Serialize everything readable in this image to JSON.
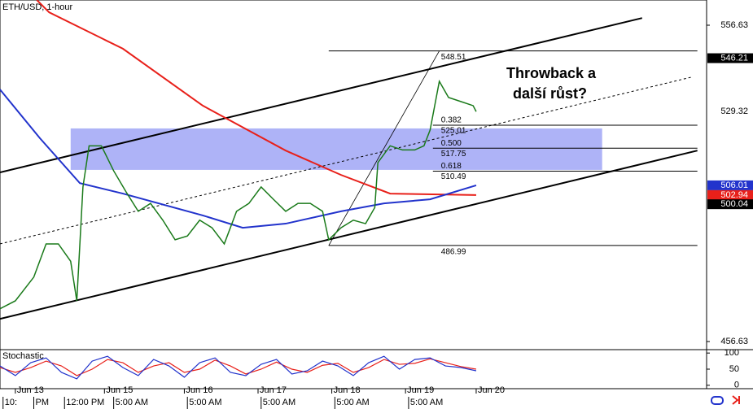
{
  "chart_data": {
    "type": "line",
    "title": "ETH/USD, 1-hour",
    "xlim": [
      0,
      230
    ],
    "ylim": [
      454.07,
      564.6
    ],
    "yticks": [
      456.63,
      556.63
    ],
    "xticks": [
      {
        "value": 5,
        "label": "Jun 13"
      },
      {
        "value": 34,
        "label": "Jun 15"
      },
      {
        "value": 60,
        "label": "Jun 16"
      },
      {
        "value": 84,
        "label": "Jun 17"
      },
      {
        "value": 108,
        "label": "Jun 18"
      },
      {
        "value": 132,
        "label": "Jun 19"
      },
      {
        "value": 155,
        "label": "Jun 20"
      }
    ],
    "xticks_minor": [
      {
        "value": 1,
        "label": "10:"
      },
      {
        "value": 11,
        "label": "PM"
      },
      {
        "value": 21,
        "label": "12:00 PM"
      },
      {
        "value": 37,
        "label": "5:00 AM"
      },
      {
        "value": 61,
        "label": "5:00 AM"
      },
      {
        "value": 85,
        "label": "5:00 AM"
      },
      {
        "value": 109,
        "label": "5:00 AM"
      },
      {
        "value": 133,
        "label": "5:00 AM"
      }
    ],
    "price": {
      "color": "#1a7a1a",
      "x": [
        0,
        5,
        11,
        15,
        19,
        23,
        25,
        27,
        29,
        33,
        37,
        41,
        45,
        49,
        53,
        57,
        61,
        65,
        69,
        73,
        77,
        81,
        85,
        89,
        93,
        97,
        101,
        105,
        107,
        111,
        115,
        119,
        122,
        123,
        127,
        131,
        135,
        138,
        140,
        143,
        146,
        150,
        154,
        155
      ],
      "values": [
        467,
        469.5,
        477,
        487.5,
        487.5,
        482,
        469.5,
        505.5,
        518.5,
        518.5,
        510.6,
        504,
        497.8,
        500.3,
        495,
        488.8,
        490,
        495,
        492.6,
        487.5,
        497.8,
        500.3,
        505.5,
        501.6,
        497.8,
        500.3,
        500.3,
        497.8,
        488.8,
        492.6,
        495,
        493.9,
        499,
        513.2,
        518.5,
        517.2,
        517.2,
        518.5,
        523.5,
        538.9,
        533.8,
        532.5,
        531.2,
        529.32
      ]
    },
    "ma_red": {
      "color": "#e8201a",
      "x": [
        12,
        16,
        40,
        66,
        93,
        111,
        127,
        155
      ],
      "values": [
        564.6,
        560.7,
        549.2,
        531.2,
        517,
        509.3,
        503.4,
        502.94
      ]
    },
    "ma_blue": {
      "color": "#2233cc",
      "x": [
        0,
        13,
        26,
        40,
        66,
        79,
        93,
        111,
        125,
        140,
        155
      ],
      "values": [
        536.3,
        520.9,
        506.7,
        503.4,
        496.5,
        492.6,
        493.9,
        497.8,
        500.3,
        501.6,
        506.01
      ]
    },
    "channel": [
      {
        "x": [
          0,
          209
        ],
        "values": [
          510.1,
          558.9
        ]
      },
      {
        "x": [
          0,
          227
        ],
        "values": [
          463.8,
          517.0
        ]
      }
    ],
    "midline": {
      "x": [
        0,
        225
      ],
      "values": [
        487.5,
        540.2
      ]
    },
    "zone": {
      "x": [
        23,
        196
      ],
      "values": [
        524,
        510.9
      ],
      "color": "#9aa0f5"
    },
    "fib": {
      "x": [
        107,
        227
      ],
      "swing": {
        "x": [
          107,
          143
        ],
        "values": [
          486.99,
          548.51
        ]
      },
      "levels": [
        {
          "value": 548.51
        },
        {
          "value": 525.01,
          "ratio": "0.382"
        },
        {
          "value": 517.75,
          "ratio": "0.500"
        },
        {
          "value": 510.49,
          "ratio": "0.618"
        },
        {
          "value": 486.99
        }
      ]
    },
    "annotation": [
      "Throwback a",
      "další růst?"
    ],
    "price_labels": [
      {
        "value": 546.21,
        "color": "#000000"
      },
      {
        "value": 529.32,
        "color": "#ffffff"
      },
      {
        "value": 506.01,
        "color": "#2233cc"
      },
      {
        "value": 502.94,
        "color": "#e8201a"
      },
      {
        "value": 500.04,
        "color": "#000000"
      }
    ],
    "stochastic": {
      "title": "Stochastic",
      "ylim": [
        -8,
        108
      ],
      "yticks": [
        0,
        50,
        100
      ],
      "levels": [
        20,
        80
      ],
      "x": [
        0,
        5,
        10,
        15,
        20,
        25,
        30,
        35,
        40,
        45,
        50,
        55,
        60,
        65,
        70,
        75,
        80,
        85,
        90,
        95,
        100,
        105,
        110,
        115,
        120,
        125,
        130,
        135,
        140,
        145,
        150,
        155
      ],
      "k": [
        60,
        30,
        70,
        85,
        40,
        20,
        75,
        90,
        55,
        30,
        80,
        60,
        25,
        70,
        85,
        40,
        30,
        65,
        80,
        35,
        45,
        75,
        60,
        30,
        70,
        90,
        50,
        80,
        85,
        60,
        55,
        45
      ],
      "d": [
        55,
        40,
        55,
        75,
        60,
        30,
        50,
        80,
        70,
        40,
        60,
        70,
        40,
        50,
        78,
        60,
        35,
        50,
        72,
        50,
        40,
        62,
        68,
        40,
        55,
        80,
        65,
        68,
        82,
        70,
        58,
        50
      ]
    }
  }
}
